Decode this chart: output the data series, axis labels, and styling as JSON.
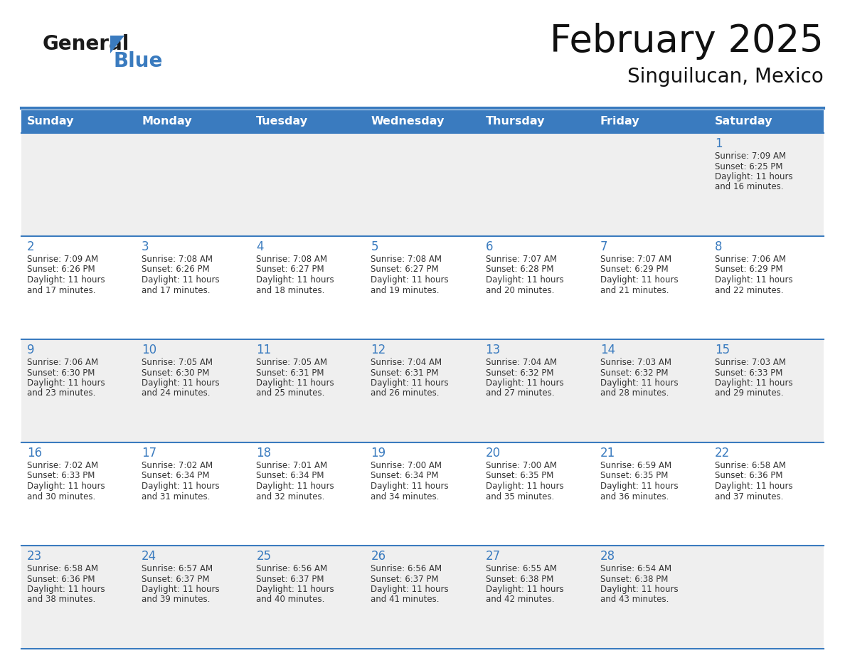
{
  "title": "February 2025",
  "subtitle": "Singuilucan, Mexico",
  "header_color": "#3a7bbf",
  "header_text_color": "#ffffff",
  "cell_bg_odd": "#efefef",
  "cell_bg_even": "#ffffff",
  "border_color": "#3a7bbf",
  "day_number_color": "#3a7bbf",
  "text_color": "#333333",
  "logo_black": "#1a1a1a",
  "logo_blue": "#3a7bbf",
  "days_of_week": [
    "Sunday",
    "Monday",
    "Tuesday",
    "Wednesday",
    "Thursday",
    "Friday",
    "Saturday"
  ],
  "weeks": [
    [
      {
        "day": "",
        "sunrise": "",
        "sunset": "",
        "daylight_line1": "",
        "daylight_line2": ""
      },
      {
        "day": "",
        "sunrise": "",
        "sunset": "",
        "daylight_line1": "",
        "daylight_line2": ""
      },
      {
        "day": "",
        "sunrise": "",
        "sunset": "",
        "daylight_line1": "",
        "daylight_line2": ""
      },
      {
        "day": "",
        "sunrise": "",
        "sunset": "",
        "daylight_line1": "",
        "daylight_line2": ""
      },
      {
        "day": "",
        "sunrise": "",
        "sunset": "",
        "daylight_line1": "",
        "daylight_line2": ""
      },
      {
        "day": "",
        "sunrise": "",
        "sunset": "",
        "daylight_line1": "",
        "daylight_line2": ""
      },
      {
        "day": "1",
        "sunrise": "7:09 AM",
        "sunset": "6:25 PM",
        "daylight_line1": "11 hours",
        "daylight_line2": "and 16 minutes."
      }
    ],
    [
      {
        "day": "2",
        "sunrise": "7:09 AM",
        "sunset": "6:26 PM",
        "daylight_line1": "11 hours",
        "daylight_line2": "and 17 minutes."
      },
      {
        "day": "3",
        "sunrise": "7:08 AM",
        "sunset": "6:26 PM",
        "daylight_line1": "11 hours",
        "daylight_line2": "and 17 minutes."
      },
      {
        "day": "4",
        "sunrise": "7:08 AM",
        "sunset": "6:27 PM",
        "daylight_line1": "11 hours",
        "daylight_line2": "and 18 minutes."
      },
      {
        "day": "5",
        "sunrise": "7:08 AM",
        "sunset": "6:27 PM",
        "daylight_line1": "11 hours",
        "daylight_line2": "and 19 minutes."
      },
      {
        "day": "6",
        "sunrise": "7:07 AM",
        "sunset": "6:28 PM",
        "daylight_line1": "11 hours",
        "daylight_line2": "and 20 minutes."
      },
      {
        "day": "7",
        "sunrise": "7:07 AM",
        "sunset": "6:29 PM",
        "daylight_line1": "11 hours",
        "daylight_line2": "and 21 minutes."
      },
      {
        "day": "8",
        "sunrise": "7:06 AM",
        "sunset": "6:29 PM",
        "daylight_line1": "11 hours",
        "daylight_line2": "and 22 minutes."
      }
    ],
    [
      {
        "day": "9",
        "sunrise": "7:06 AM",
        "sunset": "6:30 PM",
        "daylight_line1": "11 hours",
        "daylight_line2": "and 23 minutes."
      },
      {
        "day": "10",
        "sunrise": "7:05 AM",
        "sunset": "6:30 PM",
        "daylight_line1": "11 hours",
        "daylight_line2": "and 24 minutes."
      },
      {
        "day": "11",
        "sunrise": "7:05 AM",
        "sunset": "6:31 PM",
        "daylight_line1": "11 hours",
        "daylight_line2": "and 25 minutes."
      },
      {
        "day": "12",
        "sunrise": "7:04 AM",
        "sunset": "6:31 PM",
        "daylight_line1": "11 hours",
        "daylight_line2": "and 26 minutes."
      },
      {
        "day": "13",
        "sunrise": "7:04 AM",
        "sunset": "6:32 PM",
        "daylight_line1": "11 hours",
        "daylight_line2": "and 27 minutes."
      },
      {
        "day": "14",
        "sunrise": "7:03 AM",
        "sunset": "6:32 PM",
        "daylight_line1": "11 hours",
        "daylight_line2": "and 28 minutes."
      },
      {
        "day": "15",
        "sunrise": "7:03 AM",
        "sunset": "6:33 PM",
        "daylight_line1": "11 hours",
        "daylight_line2": "and 29 minutes."
      }
    ],
    [
      {
        "day": "16",
        "sunrise": "7:02 AM",
        "sunset": "6:33 PM",
        "daylight_line1": "11 hours",
        "daylight_line2": "and 30 minutes."
      },
      {
        "day": "17",
        "sunrise": "7:02 AM",
        "sunset": "6:34 PM",
        "daylight_line1": "11 hours",
        "daylight_line2": "and 31 minutes."
      },
      {
        "day": "18",
        "sunrise": "7:01 AM",
        "sunset": "6:34 PM",
        "daylight_line1": "11 hours",
        "daylight_line2": "and 32 minutes."
      },
      {
        "day": "19",
        "sunrise": "7:00 AM",
        "sunset": "6:34 PM",
        "daylight_line1": "11 hours",
        "daylight_line2": "and 34 minutes."
      },
      {
        "day": "20",
        "sunrise": "7:00 AM",
        "sunset": "6:35 PM",
        "daylight_line1": "11 hours",
        "daylight_line2": "and 35 minutes."
      },
      {
        "day": "21",
        "sunrise": "6:59 AM",
        "sunset": "6:35 PM",
        "daylight_line1": "11 hours",
        "daylight_line2": "and 36 minutes."
      },
      {
        "day": "22",
        "sunrise": "6:58 AM",
        "sunset": "6:36 PM",
        "daylight_line1": "11 hours",
        "daylight_line2": "and 37 minutes."
      }
    ],
    [
      {
        "day": "23",
        "sunrise": "6:58 AM",
        "sunset": "6:36 PM",
        "daylight_line1": "11 hours",
        "daylight_line2": "and 38 minutes."
      },
      {
        "day": "24",
        "sunrise": "6:57 AM",
        "sunset": "6:37 PM",
        "daylight_line1": "11 hours",
        "daylight_line2": "and 39 minutes."
      },
      {
        "day": "25",
        "sunrise": "6:56 AM",
        "sunset": "6:37 PM",
        "daylight_line1": "11 hours",
        "daylight_line2": "and 40 minutes."
      },
      {
        "day": "26",
        "sunrise": "6:56 AM",
        "sunset": "6:37 PM",
        "daylight_line1": "11 hours",
        "daylight_line2": "and 41 minutes."
      },
      {
        "day": "27",
        "sunrise": "6:55 AM",
        "sunset": "6:38 PM",
        "daylight_line1": "11 hours",
        "daylight_line2": "and 42 minutes."
      },
      {
        "day": "28",
        "sunrise": "6:54 AM",
        "sunset": "6:38 PM",
        "daylight_line1": "11 hours",
        "daylight_line2": "and 43 minutes."
      },
      {
        "day": "",
        "sunrise": "",
        "sunset": "",
        "daylight_line1": "",
        "daylight_line2": ""
      }
    ]
  ]
}
